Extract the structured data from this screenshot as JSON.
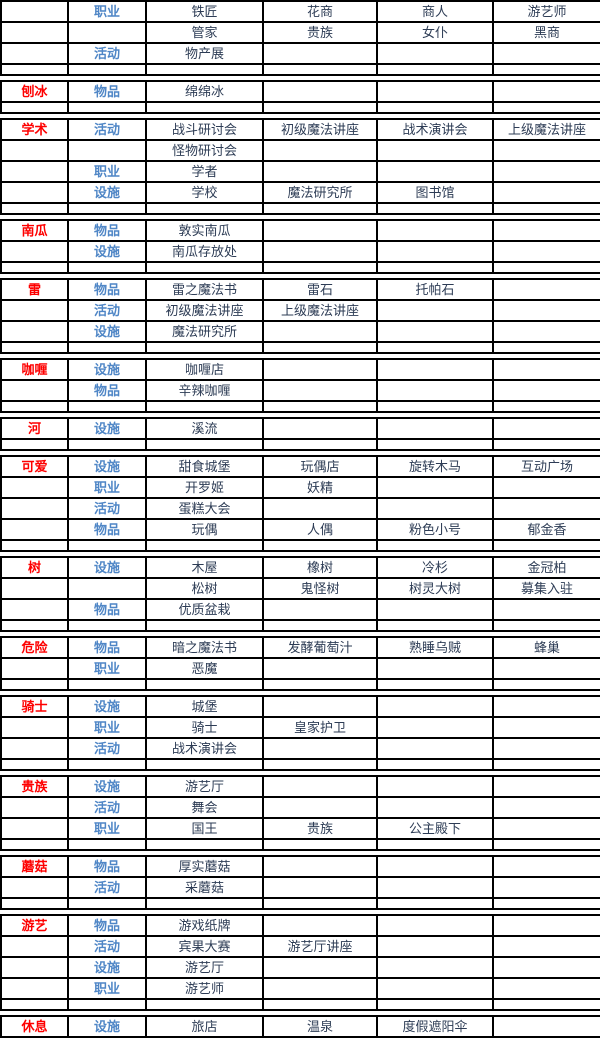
{
  "colors": {
    "category_text": "#fe0000",
    "type_text": "#4f86c6",
    "content_text": "#2d3c55",
    "grid_border": "#000000",
    "background": "#ffffff"
  },
  "table": {
    "column_roles": [
      "category",
      "type",
      "item1",
      "item2",
      "item3",
      "item4"
    ],
    "type_labels_seen": [
      "职业",
      "活动",
      "物品",
      "设施"
    ],
    "blocks": [
      {
        "separator": true,
        "rows": [
          {
            "cat": "",
            "type": "职业",
            "items": [
              "铁匠",
              "花商",
              "商人",
              "游艺师"
            ]
          },
          {
            "cat": "",
            "type": "",
            "items": [
              "管家",
              "贵族",
              "女仆",
              "黑商"
            ]
          },
          {
            "cat": "",
            "type": "活动",
            "items": [
              "物产展",
              "",
              "",
              ""
            ]
          }
        ]
      },
      {
        "separator": true,
        "rows": [
          {
            "cat": "刨冰",
            "type": "物品",
            "items": [
              "绵绵冰",
              "",
              "",
              ""
            ]
          }
        ]
      },
      {
        "separator": true,
        "rows": [
          {
            "cat": "学术",
            "type": "活动",
            "items": [
              "战斗研讨会",
              "初级魔法讲座",
              "战术演讲会",
              "上级魔法讲座"
            ]
          },
          {
            "cat": "",
            "type": "",
            "items": [
              "怪物研讨会",
              "",
              "",
              ""
            ]
          },
          {
            "cat": "",
            "type": "职业",
            "items": [
              "学者",
              "",
              "",
              ""
            ]
          },
          {
            "cat": "",
            "type": "设施",
            "items": [
              "学校",
              "魔法研究所",
              "图书馆",
              ""
            ]
          }
        ]
      },
      {
        "separator": true,
        "rows": [
          {
            "cat": "南瓜",
            "type": "物品",
            "items": [
              "敦实南瓜",
              "",
              "",
              ""
            ]
          },
          {
            "cat": "",
            "type": "设施",
            "items": [
              "南瓜存放处",
              "",
              "",
              ""
            ]
          }
        ]
      },
      {
        "separator": true,
        "rows": [
          {
            "cat": "雷",
            "type": "物品",
            "items": [
              "雷之魔法书",
              "雷石",
              "托帕石",
              ""
            ]
          },
          {
            "cat": "",
            "type": "活动",
            "items": [
              "初级魔法讲座",
              "上级魔法讲座",
              "",
              ""
            ]
          },
          {
            "cat": "",
            "type": "设施",
            "items": [
              "魔法研究所",
              "",
              "",
              ""
            ]
          }
        ]
      },
      {
        "separator": true,
        "rows": [
          {
            "cat": "咖喱",
            "type": "设施",
            "items": [
              "咖喱店",
              "",
              "",
              ""
            ]
          },
          {
            "cat": "",
            "type": "物品",
            "items": [
              "辛辣咖喱",
              "",
              "",
              ""
            ]
          }
        ]
      },
      {
        "separator": true,
        "rows": [
          {
            "cat": "河",
            "type": "设施",
            "items": [
              "溪流",
              "",
              "",
              ""
            ]
          }
        ]
      },
      {
        "separator": true,
        "rows": [
          {
            "cat": "可爱",
            "type": "设施",
            "items": [
              "甜食城堡",
              "玩偶店",
              "旋转木马",
              "互动广场"
            ]
          },
          {
            "cat": "",
            "type": "职业",
            "items": [
              "开罗姬",
              "妖精",
              "",
              ""
            ]
          },
          {
            "cat": "",
            "type": "活动",
            "items": [
              "蛋糕大会",
              "",
              "",
              ""
            ]
          },
          {
            "cat": "",
            "type": "物品",
            "items": [
              "玩偶",
              "人偶",
              "粉色小号",
              "郁金香"
            ]
          }
        ]
      },
      {
        "separator": true,
        "rows": [
          {
            "cat": "树",
            "type": "设施",
            "items": [
              "木屋",
              "橡树",
              "冷杉",
              "金冠柏"
            ]
          },
          {
            "cat": "",
            "type": "",
            "items": [
              "松树",
              "鬼怪树",
              "树灵大树",
              "募集入驻"
            ]
          },
          {
            "cat": "",
            "type": "物品",
            "items": [
              "优质盆栽",
              "",
              "",
              ""
            ]
          }
        ]
      },
      {
        "separator": true,
        "rows": [
          {
            "cat": "危险",
            "type": "物品",
            "items": [
              "暗之魔法书",
              "发酵葡萄汁",
              "熟睡乌贼",
              "蜂巢"
            ]
          },
          {
            "cat": "",
            "type": "职业",
            "items": [
              "恶魔",
              "",
              "",
              ""
            ]
          }
        ]
      },
      {
        "separator": true,
        "rows": [
          {
            "cat": "骑士",
            "type": "设施",
            "items": [
              "城堡",
              "",
              "",
              ""
            ]
          },
          {
            "cat": "",
            "type": "职业",
            "items": [
              "骑士",
              "皇家护卫",
              "",
              ""
            ]
          },
          {
            "cat": "",
            "type": "活动",
            "items": [
              "战术演讲会",
              "",
              "",
              ""
            ]
          }
        ]
      },
      {
        "separator": true,
        "rows": [
          {
            "cat": "贵族",
            "type": "设施",
            "items": [
              "游艺厅",
              "",
              "",
              ""
            ]
          },
          {
            "cat": "",
            "type": "活动",
            "items": [
              "舞会",
              "",
              "",
              ""
            ]
          },
          {
            "cat": "",
            "type": "职业",
            "items": [
              "国王",
              "贵族",
              "公主殿下",
              ""
            ]
          }
        ]
      },
      {
        "separator": true,
        "rows": [
          {
            "cat": "蘑菇",
            "type": "物品",
            "items": [
              "厚实蘑菇",
              "",
              "",
              ""
            ]
          },
          {
            "cat": "",
            "type": "活动",
            "items": [
              "采蘑菇",
              "",
              "",
              ""
            ]
          }
        ]
      },
      {
        "separator": true,
        "rows": [
          {
            "cat": "游艺",
            "type": "物品",
            "items": [
              "游戏纸牌",
              "",
              "",
              ""
            ]
          },
          {
            "cat": "",
            "type": "活动",
            "items": [
              "宾果大赛",
              "游艺厅讲座",
              "",
              ""
            ]
          },
          {
            "cat": "",
            "type": "设施",
            "items": [
              "游艺厅",
              "",
              "",
              ""
            ]
          },
          {
            "cat": "",
            "type": "职业",
            "items": [
              "游艺师",
              "",
              "",
              ""
            ]
          }
        ]
      },
      {
        "separator": false,
        "rows": [
          {
            "cat": "休息",
            "type": "设施",
            "items": [
              "旅店",
              "温泉",
              "度假遮阳伞",
              ""
            ]
          }
        ]
      }
    ]
  }
}
